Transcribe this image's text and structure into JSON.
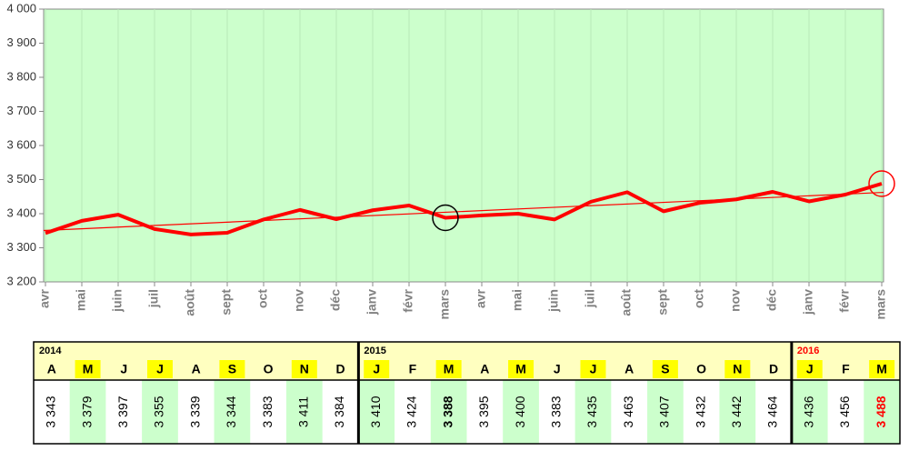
{
  "chart_data": {
    "type": "line",
    "categories": [
      "avr",
      "mai",
      "juin",
      "juil",
      "août",
      "sept",
      "oct",
      "nov",
      "déc",
      "janv",
      "févr",
      "mars",
      "avr",
      "mai",
      "juin",
      "juil",
      "août",
      "sept",
      "oct",
      "nov",
      "déc",
      "janv",
      "févr",
      "mars"
    ],
    "series": [
      {
        "color": "#ff0000",
        "values": [
          3343,
          3379,
          3397,
          3355,
          3339,
          3344,
          3383,
          3411,
          3384,
          3410,
          3424,
          3388,
          3395,
          3400,
          3383,
          3435,
          3463,
          3407,
          3432,
          3442,
          3464,
          3436,
          3456,
          3488
        ]
      }
    ],
    "ylim": [
      3200,
      4000
    ],
    "yticks": [
      {
        "value": 3200,
        "label": "3 200"
      },
      {
        "value": 3300,
        "label": "3 300"
      },
      {
        "value": 3400,
        "label": "3 400"
      },
      {
        "value": 3500,
        "label": "3 500"
      },
      {
        "value": 3600,
        "label": "3 600"
      },
      {
        "value": 3700,
        "label": "3 700"
      },
      {
        "value": 3800,
        "label": "3 800"
      },
      {
        "value": 3900,
        "label": "3 900"
      },
      {
        "value": 4000,
        "label": "4 000"
      }
    ],
    "value_labels": [
      "3 343",
      "3 379",
      "3 397",
      "3 355",
      "3 339",
      "3 344",
      "3 383",
      "3 411",
      "3 384",
      "3 410",
      "3 424",
      "3 388",
      "3 395",
      "3 400",
      "3 383",
      "3 435",
      "3 463",
      "3 407",
      "3 432",
      "3 442",
      "3 464",
      "3 436",
      "3 456",
      "3 488"
    ],
    "trendline": true,
    "highlights": [
      {
        "index": 11,
        "color": "#000000"
      },
      {
        "index": 23,
        "color": "#ff0000"
      }
    ],
    "plot_color": "#ccffcc"
  },
  "table": {
    "groups": [
      {
        "year": "2014",
        "color": "#000000",
        "letters": [
          "A",
          "M",
          "J",
          "J",
          "A",
          "S",
          "O",
          "N",
          "D"
        ]
      },
      {
        "year": "2015",
        "color": "#000000",
        "letters": [
          "J",
          "F",
          "M",
          "A",
          "M",
          "J",
          "J",
          "A",
          "S",
          "O",
          "N",
          "D"
        ]
      },
      {
        "year": "2016",
        "color": "#ff0000",
        "letters": [
          "J",
          "F",
          "M"
        ]
      }
    ]
  }
}
